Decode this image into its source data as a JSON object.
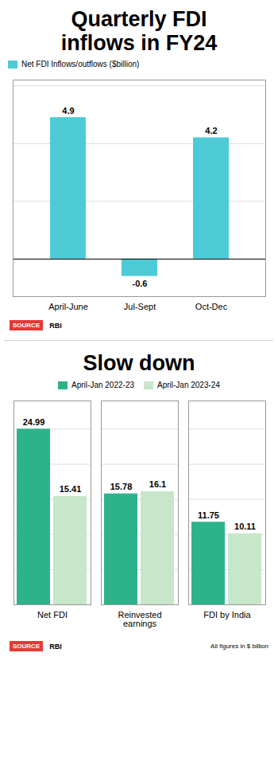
{
  "chart_data": [
    {
      "type": "bar",
      "title": "Quarterly FDI\ninflows in FY24",
      "categories": [
        "April-June",
        "Jul-Sept",
        "Oct-Dec"
      ],
      "series": [
        {
          "name": "Net FDI Inflows/outflows ($billion)",
          "color": "#4DCAD6",
          "values": [
            4.9,
            -0.6,
            4.2
          ]
        }
      ],
      "ylim": [
        -1.3,
        6.2
      ],
      "yticks": [
        0,
        2,
        4,
        6
      ],
      "grid": true,
      "tick_labels": "x",
      "data_labels": true,
      "legend": "upper left",
      "annotations": [
        {
          "text": "SOURCE",
          "color": "#E53935"
        },
        {
          "text": "RBI"
        }
      ]
    },
    {
      "type": "bar",
      "title": "Slow down",
      "categories": [
        "Net FDI",
        "Reinvested\nearnings",
        "FDI by India"
      ],
      "series": [
        {
          "name": "April-Jan 2022-23",
          "color": "#2DB38A",
          "values": [
            24.99,
            15.78,
            11.75
          ]
        },
        {
          "name": "April-Jan 2023-24",
          "color": "#C8E6C9",
          "values": [
            15.41,
            16.1,
            10.11
          ]
        }
      ],
      "ylim": [
        0,
        29
      ],
      "yticks": [
        0,
        5,
        10,
        15,
        20,
        25
      ],
      "grid": true,
      "tick_labels": "x",
      "data_labels": true,
      "legend": "upper center",
      "annotations": [
        {
          "text": "SOURCE",
          "color": "#E53935"
        },
        {
          "text": "RBI"
        },
        {
          "text": "All figures in $ billion"
        }
      ]
    }
  ]
}
